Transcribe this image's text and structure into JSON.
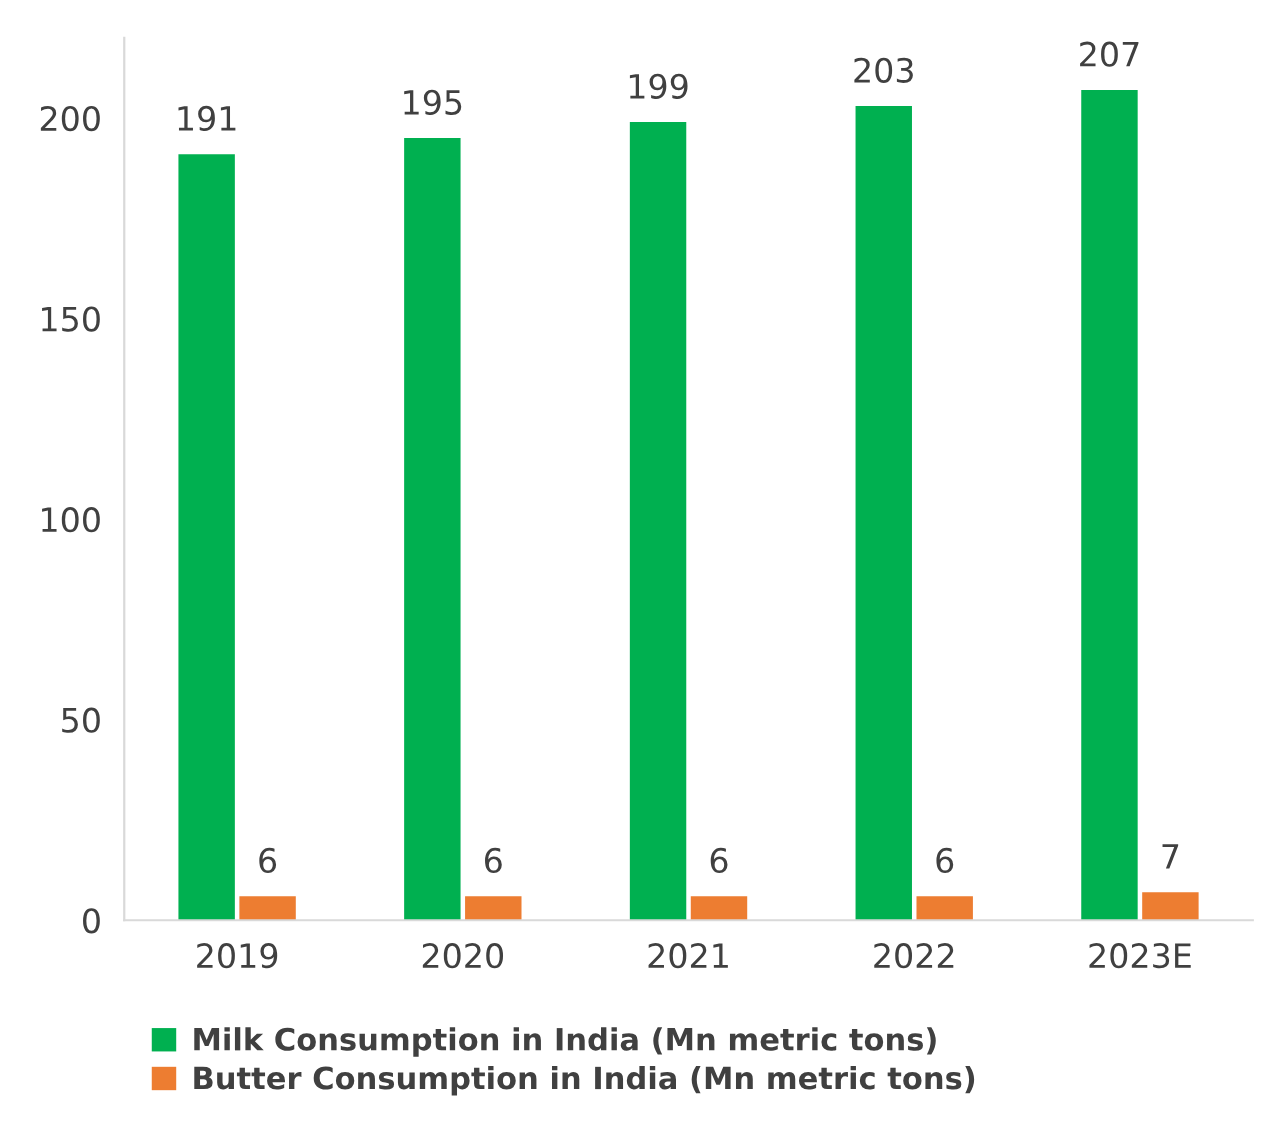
{
  "chart_data": {
    "type": "bar",
    "categories": [
      "2019",
      "2020",
      "2021",
      "2022",
      "2023E"
    ],
    "series": [
      {
        "name": "Milk Consumption in India (Mn metric tons)",
        "color": "#00b050",
        "values": [
          191,
          195,
          199,
          203,
          207
        ]
      },
      {
        "name": "Butter Consumption in India (Mn metric tons)",
        "color": "#ed7d31",
        "values": [
          6,
          6,
          6,
          6,
          7
        ]
      }
    ],
    "ylim": [
      0,
      220
    ],
    "yticks": [
      0,
      50,
      100,
      150,
      200
    ],
    "data_labels": true,
    "grid": false,
    "legend": "bottom"
  }
}
